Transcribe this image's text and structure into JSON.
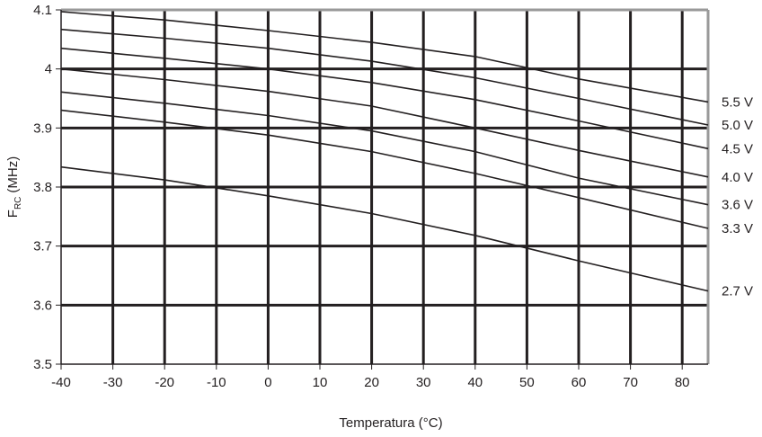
{
  "chart_data": {
    "type": "line",
    "title": "",
    "xlabel": "Temperatura (°C)",
    "ylabel_main": "F",
    "ylabel_sub": "RC",
    "ylabel_unit": "(MHz)",
    "xlim": [
      -40,
      85
    ],
    "ylim": [
      3.5,
      4.1
    ],
    "grid": true,
    "x_ticks": [
      -40,
      -30,
      -20,
      -10,
      0,
      10,
      20,
      30,
      40,
      50,
      60,
      70,
      80
    ],
    "x_tick_labels": [
      "-40",
      "-30",
      "-20",
      "-10",
      "0",
      "10",
      "20",
      "30",
      "40",
      "50",
      "60",
      "70",
      "80"
    ],
    "y_ticks": [
      3.5,
      3.6,
      3.7,
      3.8,
      3.9,
      4.0,
      4.1
    ],
    "y_tick_labels": [
      "3.5",
      "3.6",
      "3.7",
      "3.8",
      "3.9",
      "4",
      "4.1"
    ],
    "legend_placement": "right (inline at line ends)",
    "x": [
      -40,
      -20,
      0,
      20,
      40,
      60,
      85
    ],
    "series": [
      {
        "name": "5.5 V",
        "values": [
          4.097,
          4.083,
          4.065,
          4.045,
          4.021,
          3.983,
          3.944
        ]
      },
      {
        "name": "5.0 V",
        "values": [
          4.067,
          4.052,
          4.035,
          4.013,
          3.985,
          3.95,
          3.905
        ]
      },
      {
        "name": "4.5 V",
        "values": [
          4.035,
          4.018,
          4.0,
          3.977,
          3.948,
          3.912,
          3.865
        ]
      },
      {
        "name": "4.0 V",
        "values": [
          4.0,
          3.982,
          3.962,
          3.937,
          3.9,
          3.862,
          3.817
        ]
      },
      {
        "name": "3.6 V",
        "values": [
          3.961,
          3.942,
          3.921,
          3.895,
          3.86,
          3.815,
          3.77
        ]
      },
      {
        "name": "3.3 V",
        "values": [
          3.93,
          3.91,
          3.888,
          3.86,
          3.823,
          3.782,
          3.73
        ]
      },
      {
        "name": "2.7 V",
        "values": [
          3.834,
          3.812,
          3.785,
          3.755,
          3.718,
          3.675,
          3.624
        ]
      }
    ],
    "colors": {
      "line": "#231f20",
      "grid": "#231f20",
      "frame": "#999999"
    }
  }
}
